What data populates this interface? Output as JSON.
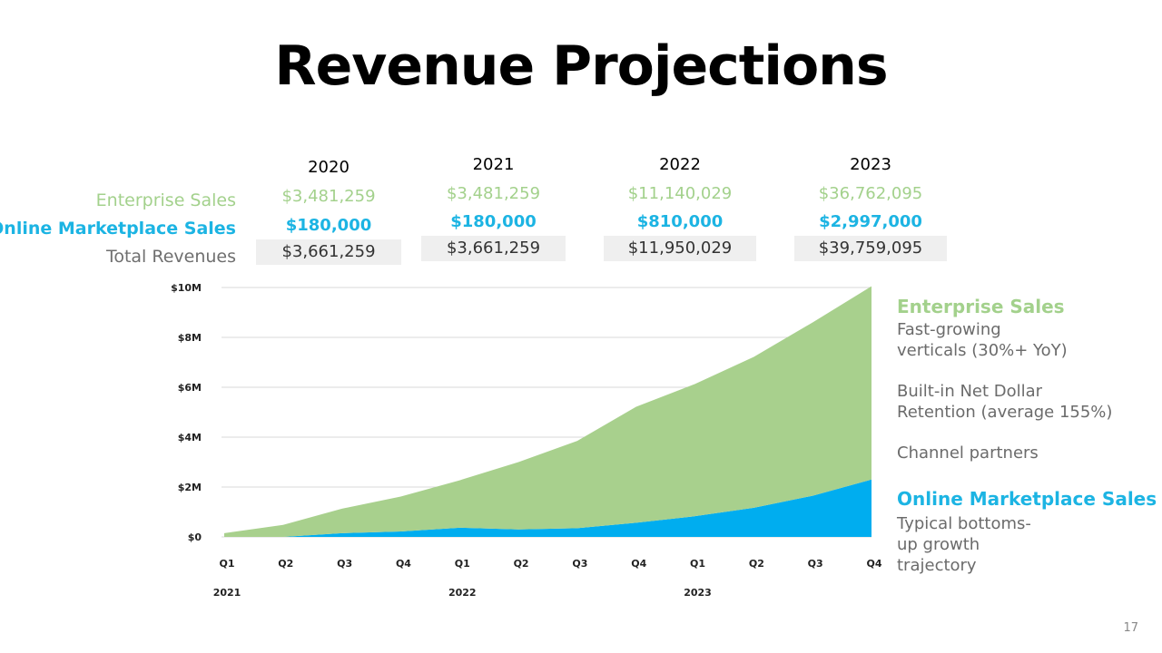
{
  "slide": {
    "title": "Revenue Projections",
    "page_number": "17"
  },
  "table": {
    "row_labels": {
      "enterprise": "Enterprise Sales",
      "online": "Online Marketplace Sales",
      "total": "Total Revenues"
    },
    "years": [
      {
        "year": "2020",
        "enterprise": "$3,481,259",
        "online": "$180,000",
        "total": "$3,661,259"
      },
      {
        "year": "2021",
        "enterprise": "$3,481,259",
        "online": "$180,000",
        "total": "$3,661,259"
      },
      {
        "year": "2022",
        "enterprise": "$11,140,029",
        "online": "$810,000",
        "total": "$11,950,029"
      },
      {
        "year": "2023",
        "enterprise": "$36,762,095",
        "online": "$2,997,000",
        "total": "$39,759,095"
      }
    ]
  },
  "sidebar": {
    "enterprise_heading": "Enterprise Sales",
    "enterprise_points": [
      "Fast-growing verticals (30%+ YoY)",
      "Built-in Net Dollar Retention (average 155%)",
      "Channel partners"
    ],
    "online_heading": "Online Marketplace Sales",
    "online_points": [
      "Typical bottoms-up growth trajectory"
    ]
  },
  "chart_data": {
    "type": "area",
    "stacked": true,
    "grid": true,
    "ylim": [
      0,
      10
    ],
    "y_ticks": [
      "$0",
      "$2M",
      "$4M",
      "$6M",
      "$8M",
      "$10M"
    ],
    "y_tick_values": [
      0,
      2,
      4,
      6,
      8,
      10
    ],
    "categories": [
      "Q1",
      "Q2",
      "Q3",
      "Q4",
      "Q1",
      "Q2",
      "Q3",
      "Q4",
      "Q1",
      "Q2",
      "Q3",
      "Q4"
    ],
    "year_labels": [
      {
        "label": "2021",
        "index": 0
      },
      {
        "label": "2022",
        "index": 4
      },
      {
        "label": "2023",
        "index": 8
      }
    ],
    "series": [
      {
        "name": "Online Marketplace Sales",
        "color": "#00adef",
        "values": [
          0,
          0,
          0.15,
          0.22,
          0.37,
          0.3,
          0.35,
          0.57,
          0.83,
          1.17,
          1.65,
          2.3
        ]
      },
      {
        "name": "Enterprise Sales",
        "color": "#a8d08d",
        "values": [
          0.15,
          0.48,
          0.98,
          1.4,
          1.9,
          2.7,
          3.5,
          4.65,
          5.3,
          6.05,
          6.95,
          7.75
        ]
      }
    ]
  }
}
